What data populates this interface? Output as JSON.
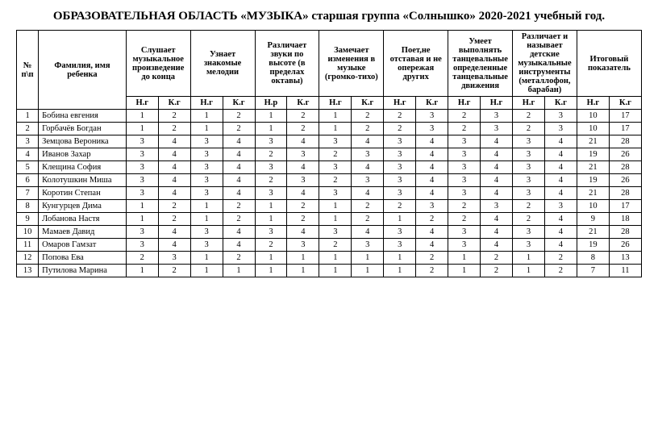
{
  "title": "ОБРАЗОВАТЕЛЬНАЯ ОБЛАСТЬ «МУЗЫКА» старшая  группа «Солнышко» 2020-2021 учебный год.",
  "headers": {
    "num": "№ п\\п",
    "name": "Фамилия, имя ребенка",
    "c1": "Слушает музыкальное произведение до конца",
    "c2": "Узнает знакомые мелодии",
    "c3": "Различает звуки по высоте (в пределах октавы)",
    "c4": "Замечает изменения в музыке (громко-тихо)",
    "c5": "Поет,не отставая и не опережая других",
    "c6": "Умеет выполнять танцевальные определенные танцевальные движения",
    "c7": "Различает и называет детские музыкальные инструменты (металлофон, барабан)",
    "c8": "Итоговый показатель",
    "sub": [
      "Н.г",
      "К.г",
      "Н.г",
      "К.г",
      "Н.р",
      "К.г",
      "Н.г",
      "К.г",
      "Н.г",
      "К.г",
      "Н.г",
      "Н.г",
      "Н.г",
      "К.г",
      "Н.г",
      "К.г"
    ]
  },
  "rows": [
    {
      "n": "1",
      "name": "Бобина евгения",
      "v": [
        1,
        2,
        1,
        2,
        1,
        2,
        1,
        2,
        2,
        3,
        2,
        3,
        2,
        3,
        10,
        17
      ]
    },
    {
      "n": "2",
      "name": "Горбачёв Богдан",
      "v": [
        1,
        2,
        1,
        2,
        1,
        2,
        1,
        2,
        2,
        3,
        2,
        3,
        2,
        3,
        10,
        17
      ]
    },
    {
      "n": "3",
      "name": "Земцова Вероника",
      "v": [
        3,
        4,
        3,
        4,
        3,
        4,
        3,
        4,
        3,
        4,
        3,
        4,
        3,
        4,
        21,
        28
      ]
    },
    {
      "n": "4",
      "name": "Иванов Захар",
      "v": [
        3,
        4,
        3,
        4,
        2,
        3,
        2,
        3,
        3,
        4,
        3,
        4,
        3,
        4,
        19,
        26
      ]
    },
    {
      "n": "5",
      "name": "Клещина София",
      "v": [
        3,
        4,
        3,
        4,
        3,
        4,
        3,
        4,
        3,
        4,
        3,
        4,
        3,
        4,
        21,
        28
      ]
    },
    {
      "n": "6",
      "name": "Колотушкин Миша",
      "v": [
        3,
        4,
        3,
        4,
        2,
        3,
        2,
        3,
        3,
        4,
        3,
        4,
        3,
        4,
        19,
        26
      ]
    },
    {
      "n": "7",
      "name": "Коротин Степан",
      "v": [
        3,
        4,
        3,
        4,
        3,
        4,
        3,
        4,
        3,
        4,
        3,
        4,
        3,
        4,
        21,
        28
      ]
    },
    {
      "n": "8",
      "name": "Кунгурцев Дима",
      "v": [
        1,
        2,
        1,
        2,
        1,
        2,
        1,
        2,
        2,
        3,
        2,
        3,
        2,
        3,
        10,
        17
      ]
    },
    {
      "n": "9",
      "name": "Лобанова Настя",
      "v": [
        1,
        2,
        1,
        2,
        1,
        2,
        1,
        2,
        1,
        2,
        2,
        4,
        2,
        4,
        9,
        18
      ]
    },
    {
      "n": "10",
      "name": "Мамаев Давид",
      "v": [
        3,
        4,
        3,
        4,
        3,
        4,
        3,
        4,
        3,
        4,
        3,
        4,
        3,
        4,
        21,
        28
      ]
    },
    {
      "n": "11",
      "name": "Омаров Гамзат",
      "v": [
        3,
        4,
        3,
        4,
        2,
        3,
        2,
        3,
        3,
        4,
        3,
        4,
        3,
        4,
        19,
        26
      ]
    },
    {
      "n": "12",
      "name": "Попова Ева",
      "v": [
        2,
        3,
        1,
        2,
        1,
        1,
        1,
        1,
        1,
        2,
        1,
        2,
        1,
        2,
        8,
        13
      ]
    },
    {
      "n": "13",
      "name": "Путилова Марина",
      "v": [
        1,
        2,
        1,
        1,
        1,
        1,
        1,
        1,
        1,
        2,
        1,
        2,
        1,
        2,
        7,
        11
      ]
    }
  ]
}
